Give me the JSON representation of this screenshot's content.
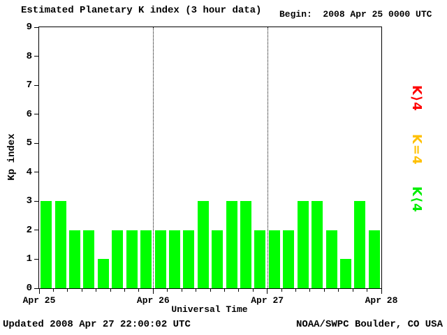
{
  "page": {
    "title": "Estimated Planetary K index (3 hour data)",
    "begin_label": "Begin:  2008 Apr 25 0000 UTC"
  },
  "footer": {
    "updated": "Updated 2008 Apr 27 22:00:02 UTC",
    "source": "NOAA/SWPC Boulder, CO USA"
  },
  "legend": [
    {
      "label": "K⟩4",
      "color": "#ff0000",
      "meaning": "Kp greater than 4"
    },
    {
      "label": "K=4",
      "color": "#ffc000",
      "meaning": "Kp equal to 4"
    },
    {
      "label": "K⟨4",
      "color": "#00ee00",
      "meaning": "Kp less than 4"
    }
  ],
  "chart_data": {
    "type": "bar",
    "title": "Estimated Planetary K index (3 hour data)",
    "xlabel": "Universal Time",
    "ylabel": "Kp index",
    "ylim": [
      0,
      9
    ],
    "yticks": [
      0,
      1,
      2,
      3,
      4,
      5,
      6,
      7,
      8,
      9
    ],
    "days": 3,
    "slots_per_day": 8,
    "bar_interval_hours": 3,
    "begin": "2008 Apr 25 0000 UTC",
    "x_day_labels": [
      "Apr 25",
      "Apr 26",
      "Apr 27",
      "Apr 28"
    ],
    "day_boundary_lines": [
      1,
      2
    ],
    "values": [
      3,
      3,
      2,
      2,
      1,
      2,
      2,
      2,
      2,
      2,
      2,
      3,
      2,
      3,
      3,
      2,
      2,
      2,
      3,
      3,
      2,
      1,
      3,
      2
    ],
    "colors": {
      "lt4": "#00ff00",
      "eq4": "#ffff00",
      "gt4": "#ff0000"
    },
    "grid": "none",
    "legend_position": "right-vertical"
  }
}
